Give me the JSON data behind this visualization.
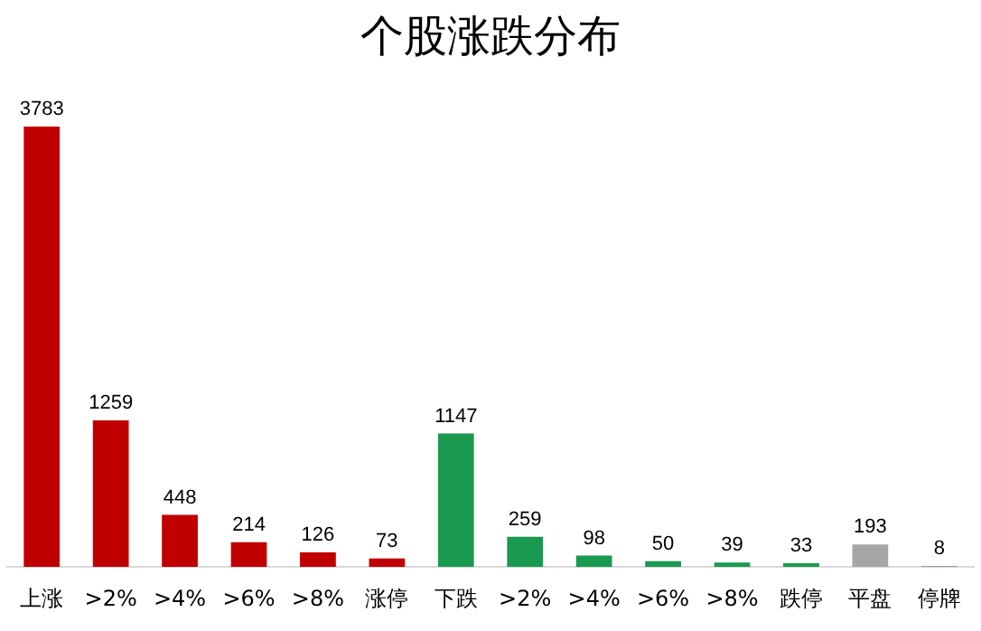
{
  "chart_data": {
    "type": "bar",
    "title": "个股涨跌分布",
    "categories": [
      "上涨",
      ">2%",
      ">4%",
      ">6%",
      ">8%",
      "涨停",
      "下跌",
      ">2%",
      ">4%",
      ">6%",
      ">8%",
      "跌停",
      "平盘",
      "停牌"
    ],
    "values": [
      3783,
      1259,
      448,
      214,
      126,
      73,
      1147,
      259,
      98,
      50,
      39,
      33,
      193,
      8
    ],
    "colors": [
      "#c00000",
      "#c00000",
      "#c00000",
      "#c00000",
      "#c00000",
      "#c00000",
      "#1a9a50",
      "#1a9a50",
      "#1a9a50",
      "#1a9a50",
      "#1a9a50",
      "#1a9a50",
      "#a6a6a6",
      "#7f8f7f"
    ],
    "data_labels": true,
    "tick_labels": "x",
    "grid": false,
    "legend": false
  }
}
